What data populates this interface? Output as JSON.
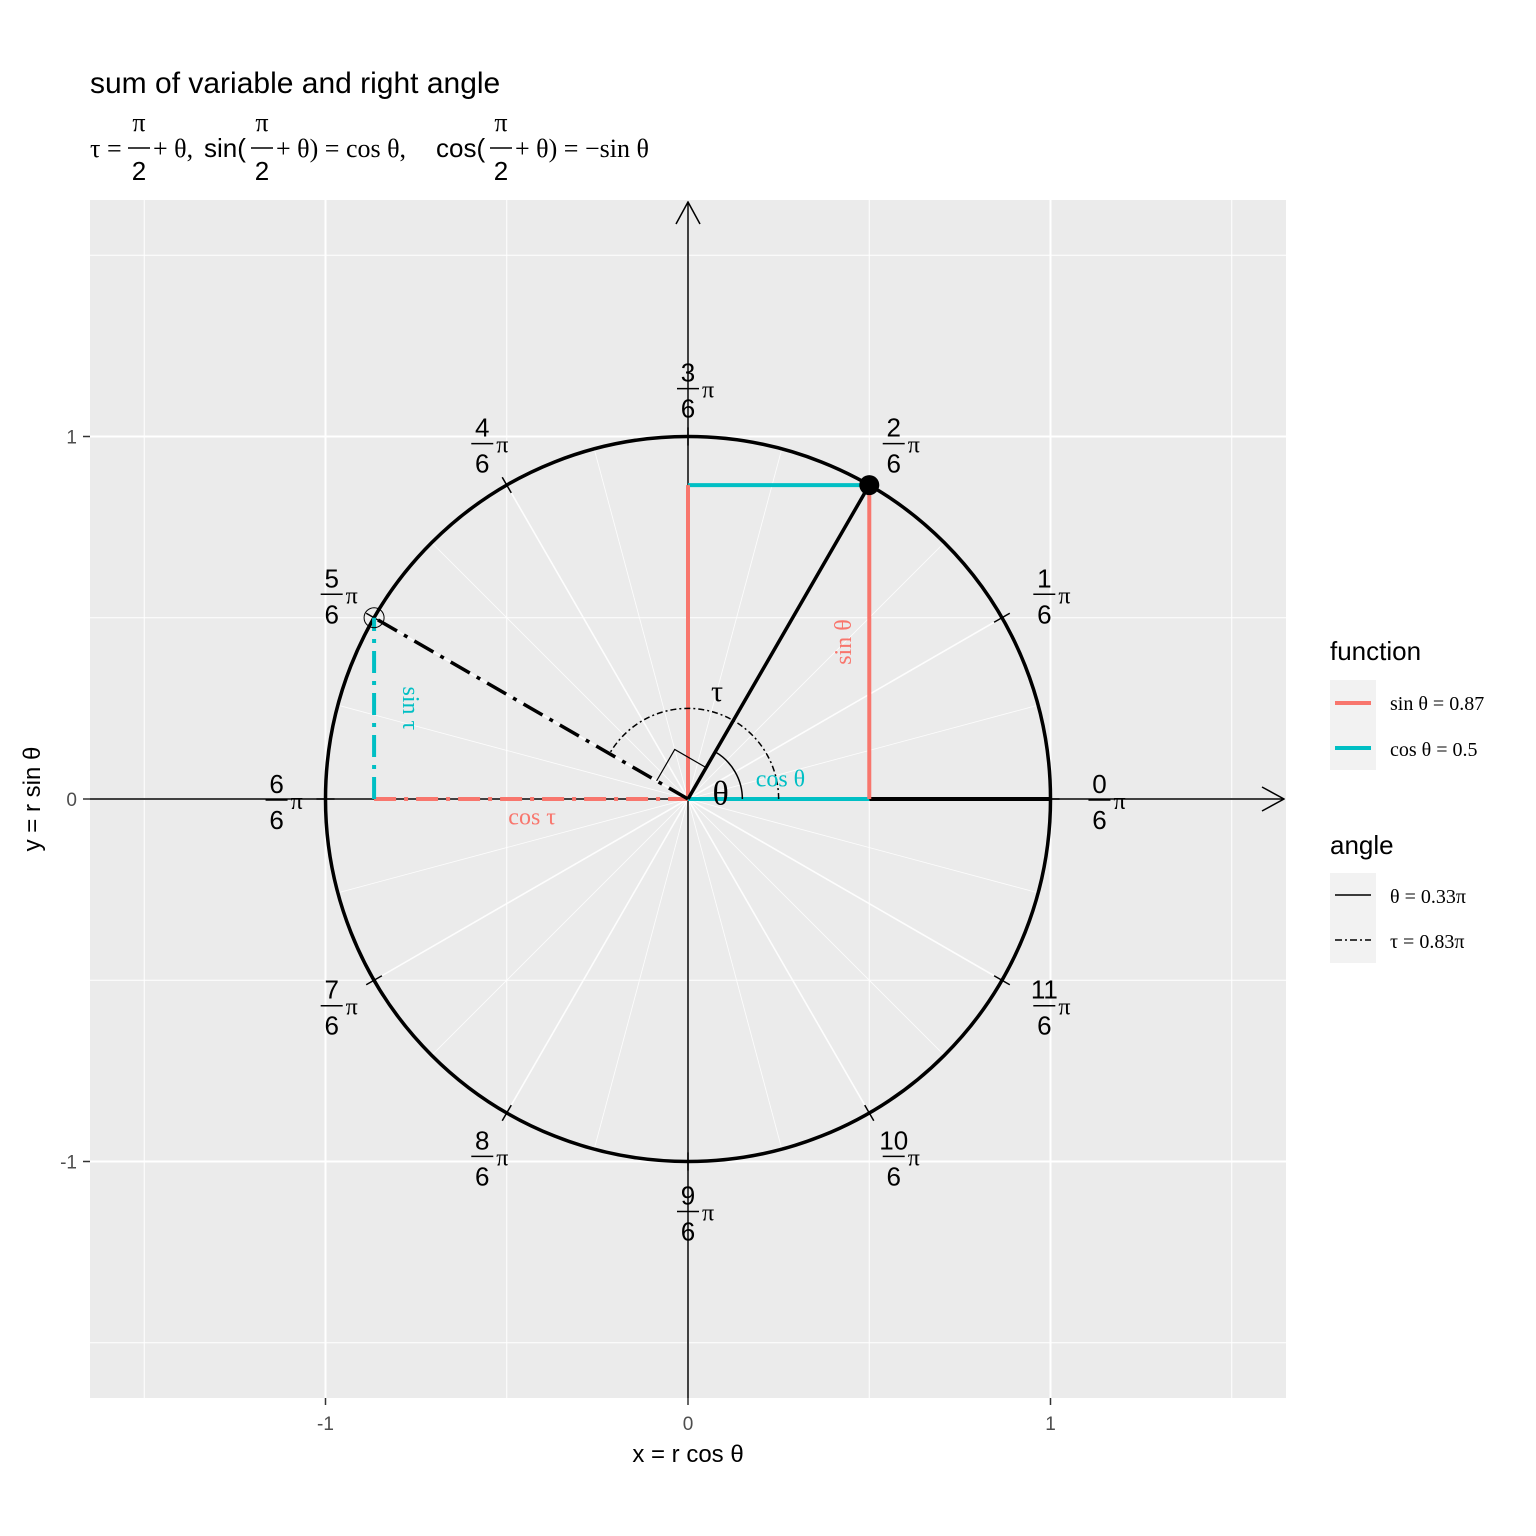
{
  "chart_data": {
    "type": "line",
    "title": "sum of variable and right angle",
    "subtitle": {
      "tau_eq": "τ =",
      "plus_theta_1": "+ θ,",
      "sin_open": "sin(",
      "plus_theta_2": "+ θ) = cos θ,",
      "cos_open": "cos(",
      "plus_theta_3": "+ θ) = −sin θ",
      "frac_num": "π",
      "frac_den": "2"
    },
    "xlabel": "x = r cos θ",
    "ylabel": "y = r sin θ",
    "xlim": [
      -1.65,
      1.65
    ],
    "ylim": [
      -1.65,
      1.65
    ],
    "x_ticks": [
      -1,
      0,
      1
    ],
    "y_ticks": [
      -1,
      0,
      1
    ],
    "x_tick_labels": [
      "-1",
      "0",
      "1"
    ],
    "y_tick_labels": [
      "-1",
      "0",
      "1"
    ],
    "grid": true,
    "theta_pi": 0.3333,
    "tau_pi": 0.8333,
    "unit_circle_radius": 1,
    "angle_labels": [
      {
        "num": "0",
        "den": "6",
        "pi": "π",
        "k": 0
      },
      {
        "num": "1",
        "den": "6",
        "pi": "π",
        "k": 1
      },
      {
        "num": "2",
        "den": "6",
        "pi": "π",
        "k": 2
      },
      {
        "num": "3",
        "den": "6",
        "pi": "π",
        "k": 3
      },
      {
        "num": "4",
        "den": "6",
        "pi": "π",
        "k": 4
      },
      {
        "num": "5",
        "den": "6",
        "pi": "π",
        "k": 5
      },
      {
        "num": "6",
        "den": "6",
        "pi": "π",
        "k": 6
      },
      {
        "num": "7",
        "den": "6",
        "pi": "π",
        "k": 7
      },
      {
        "num": "8",
        "den": "6",
        "pi": "π",
        "k": 8
      },
      {
        "num": "9",
        "den": "6",
        "pi": "π",
        "k": 9
      },
      {
        "num": "10",
        "den": "6",
        "pi": "π",
        "k": 10
      },
      {
        "num": "11",
        "den": "6",
        "pi": "π",
        "k": 11
      }
    ],
    "segment_labels": {
      "sin_theta": "sin θ",
      "cos_theta": "cos θ",
      "sin_tau": "sin τ",
      "cos_tau": "cos τ",
      "theta": "θ",
      "tau": "τ"
    },
    "colors": {
      "sin": "#F8766D",
      "cos": "#00BFC4",
      "panel": "#EBEBEB",
      "grid": "#FFFFFF",
      "tick_text": "#4D4D4D"
    },
    "legend": {
      "function": {
        "title": "function",
        "items": [
          {
            "label": "sin θ = 0.87",
            "color": "#F8766D"
          },
          {
            "label": "cos θ = 0.5",
            "color": "#00BFC4"
          }
        ]
      },
      "angle": {
        "title": "angle",
        "items": [
          {
            "label": "θ = 0.33π",
            "linetype": "solid"
          },
          {
            "label": "τ = 0.83π",
            "linetype": "dotdash"
          }
        ]
      }
    }
  }
}
